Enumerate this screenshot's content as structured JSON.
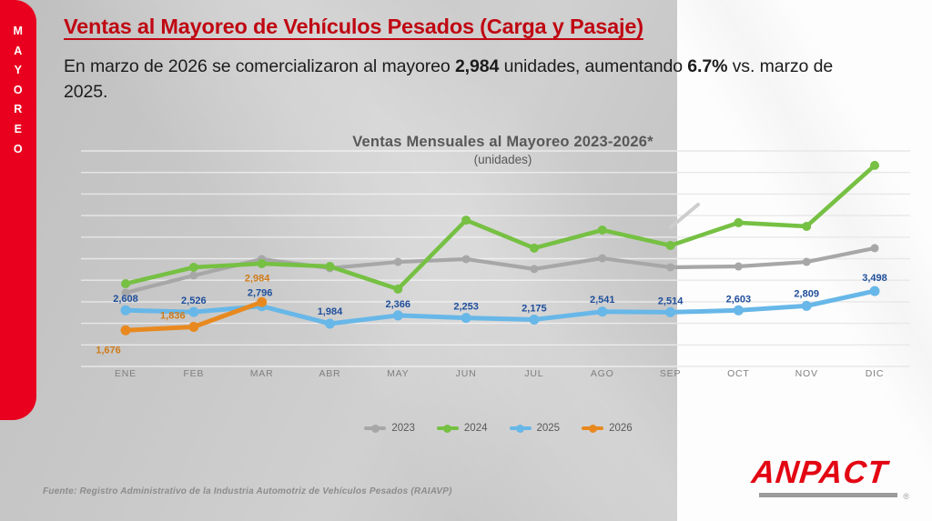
{
  "slide": {
    "sidebar_label": "MAYOREO",
    "sidebar_color": "#e9001f",
    "title": "Ventas al Mayoreo de Vehículos Pesados (Carga y Pasaje)",
    "title_color": "#c00712",
    "subtitle_segments": [
      {
        "text": "En marzo de 2026 se comercializaron al mayoreo ",
        "bold": false
      },
      {
        "text": "2,984",
        "bold": true
      },
      {
        "text": " unidades, aumentando ",
        "bold": false
      },
      {
        "text": "6.7%",
        "bold": true
      },
      {
        "text": " vs. marzo de 2025.",
        "bold": false
      }
    ],
    "source": "Fuente: Registro Administrativo de la Industria Automotriz de Vehículos Pesados (RAIAVP)",
    "logo_text": "ANPACT",
    "logo_reg": "®",
    "logo_color": "#e30613"
  },
  "chart_data": {
    "type": "line",
    "title": "Ventas Mensuales al Mayoreo 2023-2026*",
    "subtitle": "(unidades)",
    "categories": [
      "ENE",
      "FEB",
      "MAR",
      "ABR",
      "MAY",
      "JUN",
      "JUL",
      "AGO",
      "SEP",
      "OCT",
      "NOV",
      "DIC"
    ],
    "ylim": [
      0,
      10000
    ],
    "grid_step": 1000,
    "grid": "horizontal",
    "legend_position": "bottom",
    "series": [
      {
        "name": "2023",
        "color": "#a7a7a7",
        "estimated": true,
        "point_labels": null,
        "label_color": null,
        "values": [
          3420,
          4220,
          4980,
          4560,
          4850,
          4980,
          4520,
          5020,
          4600,
          4640,
          4850,
          5490
        ]
      },
      {
        "name": "2024",
        "color": "#76c043",
        "estimated": true,
        "point_labels": null,
        "label_color": null,
        "values": [
          3840,
          4600,
          4770,
          4640,
          3590,
          6790,
          5490,
          6330,
          5610,
          6670,
          6500,
          9330
        ]
      },
      {
        "name": "2025",
        "color": "#67b7e8",
        "estimated": false,
        "label_color": "#1f4e9b",
        "values": [
          2608,
          2526,
          2796,
          1984,
          2366,
          2253,
          2175,
          2541,
          2514,
          2603,
          2809,
          3498
        ],
        "point_labels": [
          "2,608",
          "2,526",
          "2,796",
          "1,984",
          "2,366",
          "2,253",
          "2,175",
          "2,541",
          "2,514",
          "2,603",
          "2,809",
          "3,498"
        ]
      },
      {
        "name": "2026",
        "color": "#e8891f",
        "estimated": false,
        "label_color": "#d07b1a",
        "values": [
          1676,
          1836,
          2984
        ],
        "point_labels": [
          "1,676",
          "1,836",
          "2,984"
        ]
      }
    ]
  }
}
